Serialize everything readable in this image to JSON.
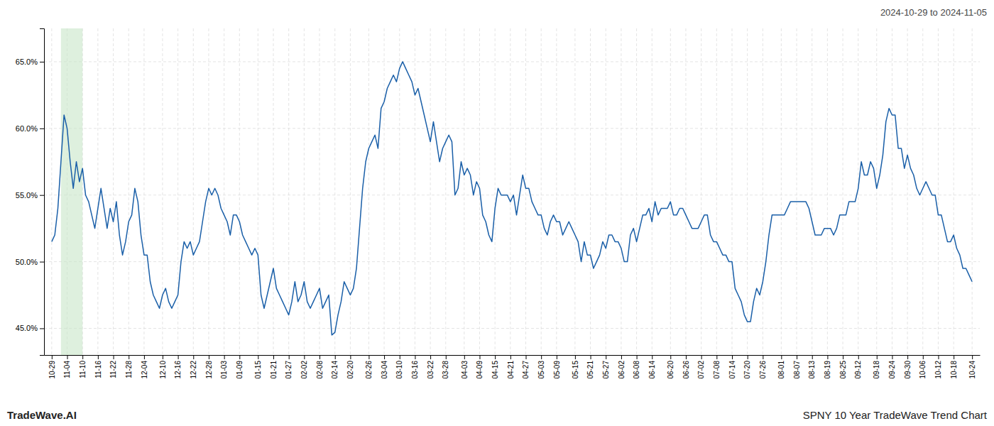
{
  "chart_data": {
    "type": "line",
    "title": "2024-10-29 to 2024-11-05",
    "annotations": [
      "TradeWave.AI",
      "SPNY 10 Year TradeWave Trend Chart"
    ],
    "color": "#1a5fa8",
    "highlight_band": {
      "start": 3,
      "end": 10,
      "color": "#c8e6c8"
    },
    "grid": true,
    "ylim": [
      43.0,
      67.5
    ],
    "yticks": [
      {
        "value": 45.0,
        "label": "45.0%"
      },
      {
        "value": 50.0,
        "label": "50.0%"
      },
      {
        "value": 55.0,
        "label": "55.0%"
      },
      {
        "value": 60.0,
        "label": "60.0%"
      },
      {
        "value": 65.0,
        "label": "65.0%"
      }
    ],
    "categories": [
      "10-29",
      null,
      null,
      null,
      null,
      "11-04",
      null,
      null,
      null,
      null,
      "11-10",
      null,
      null,
      null,
      null,
      "11-16",
      null,
      null,
      null,
      null,
      "11-22",
      null,
      null,
      null,
      null,
      "11-28",
      null,
      null,
      null,
      null,
      "12-04",
      null,
      null,
      null,
      null,
      null,
      "12-10",
      null,
      null,
      null,
      null,
      "12-16",
      null,
      null,
      null,
      null,
      "12-22",
      null,
      null,
      null,
      null,
      "12-28",
      null,
      null,
      null,
      null,
      "01-03",
      null,
      null,
      null,
      null,
      "01-09",
      null,
      null,
      null,
      null,
      null,
      "01-15",
      null,
      null,
      null,
      null,
      "01-21",
      null,
      null,
      null,
      null,
      "01-27",
      null,
      null,
      null,
      null,
      "02-02",
      null,
      null,
      null,
      null,
      "02-08",
      null,
      null,
      null,
      null,
      "02-14",
      null,
      null,
      null,
      null,
      "02-20",
      null,
      null,
      null,
      null,
      null,
      "02-26",
      null,
      null,
      null,
      null,
      "03-04",
      null,
      null,
      null,
      null,
      "03-10",
      null,
      null,
      null,
      null,
      "03-16",
      null,
      null,
      null,
      null,
      "03-22",
      null,
      null,
      null,
      null,
      "03-28",
      null,
      null,
      null,
      null,
      null,
      "04-03",
      null,
      null,
      null,
      null,
      "04-09",
      null,
      null,
      null,
      null,
      "04-15",
      null,
      null,
      null,
      null,
      "04-21",
      null,
      null,
      null,
      null,
      "04-27",
      null,
      null,
      null,
      null,
      "05-03",
      null,
      null,
      null,
      null,
      "05-09",
      null,
      null,
      null,
      null,
      null,
      "05-15",
      null,
      null,
      null,
      null,
      "05-21",
      null,
      null,
      null,
      null,
      "05-27",
      null,
      null,
      null,
      null,
      "06-02",
      null,
      null,
      null,
      null,
      "06-08",
      null,
      null,
      null,
      null,
      "06-14",
      null,
      null,
      null,
      null,
      null,
      "06-20",
      null,
      null,
      null,
      null,
      "06-26",
      null,
      null,
      null,
      null,
      "07-02",
      null,
      null,
      null,
      null,
      "07-08",
      null,
      null,
      null,
      null,
      "07-14",
      null,
      null,
      null,
      null,
      "07-20",
      null,
      null,
      null,
      null,
      "07-26",
      null,
      null,
      null,
      null,
      null,
      "08-01",
      null,
      null,
      null,
      null,
      "08-07",
      null,
      null,
      null,
      null,
      "08-13",
      null,
      null,
      null,
      null,
      "08-19",
      null,
      null,
      null,
      null,
      "08-25",
      null,
      null,
      null,
      null,
      "09-12",
      null,
      null,
      null,
      null,
      null,
      "09-18",
      null,
      null,
      null,
      null,
      "09-24",
      null,
      null,
      null,
      null,
      "09-30",
      null,
      null,
      null,
      null,
      "10-06",
      null,
      null,
      null,
      null,
      "10-12",
      null,
      null,
      null,
      null,
      "10-18",
      null,
      null,
      null,
      null,
      null,
      "10-24"
    ],
    "values": [
      51.5,
      52.0,
      54.0,
      57.5,
      61.0,
      60.0,
      57.5,
      55.5,
      57.5,
      56.0,
      57.0,
      55.0,
      54.5,
      53.5,
      52.5,
      54.0,
      55.5,
      54.0,
      52.5,
      54.0,
      53.0,
      54.5,
      52.0,
      50.5,
      51.5,
      53.0,
      53.5,
      55.5,
      54.5,
      52.0,
      50.5,
      50.5,
      48.5,
      47.5,
      47.0,
      46.5,
      47.5,
      48.0,
      47.0,
      46.5,
      47.0,
      47.5,
      50.0,
      51.5,
      51.0,
      51.5,
      50.5,
      51.0,
      51.5,
      53.0,
      54.5,
      55.5,
      55.0,
      55.5,
      55.0,
      54.0,
      53.5,
      53.0,
      52.0,
      53.5,
      53.5,
      53.0,
      52.0,
      51.5,
      51.0,
      50.5,
      51.0,
      50.5,
      47.5,
      46.5,
      47.5,
      48.5,
      49.5,
      48.0,
      47.5,
      47.0,
      46.5,
      46.0,
      47.0,
      48.5,
      47.0,
      47.5,
      48.5,
      47.0,
      46.5,
      47.0,
      47.5,
      48.0,
      46.5,
      47.0,
      47.5,
      44.5,
      44.7,
      46.0,
      47.0,
      48.5,
      48.0,
      47.5,
      48.0,
      49.5,
      52.5,
      55.5,
      57.5,
      58.5,
      59.0,
      59.5,
      58.5,
      61.5,
      62.0,
      63.0,
      63.5,
      64.0,
      63.5,
      64.5,
      65.0,
      64.5,
      64.0,
      63.5,
      62.5,
      63.0,
      62.0,
      61.0,
      60.0,
      59.0,
      60.5,
      59.0,
      57.5,
      58.5,
      59.0,
      59.5,
      59.0,
      55.0,
      55.5,
      57.5,
      56.5,
      57.0,
      56.5,
      55.0,
      56.0,
      55.5,
      53.5,
      53.0,
      52.0,
      51.5,
      54.0,
      55.5,
      55.0,
      55.0,
      55.0,
      54.5,
      55.0,
      53.5,
      55.0,
      56.5,
      55.5,
      55.5,
      54.5,
      54.0,
      53.5,
      53.5,
      52.5,
      52.0,
      53.0,
      53.5,
      53.0,
      53.0,
      52.0,
      52.5,
      53.0,
      52.5,
      52.0,
      51.5,
      50.0,
      51.5,
      50.5,
      50.5,
      49.5,
      50.0,
      50.5,
      51.5,
      51.0,
      52.0,
      52.0,
      51.5,
      51.5,
      51.0,
      50.0,
      50.0,
      52.0,
      52.5,
      51.5,
      52.5,
      53.5,
      53.5,
      54.0,
      53.0,
      54.5,
      53.5,
      54.0,
      54.0,
      54.0,
      54.5,
      53.5,
      53.5,
      54.0,
      54.0,
      53.5,
      53.0,
      52.5,
      52.5,
      52.5,
      53.0,
      53.5,
      53.5,
      52.0,
      51.5,
      51.5,
      51.0,
      50.5,
      50.5,
      50.0,
      50.0,
      48.0,
      47.5,
      47.0,
      46.0,
      45.5,
      45.5,
      47.0,
      48.0,
      47.5,
      48.5,
      50.0,
      52.0,
      53.5,
      53.5,
      53.5,
      53.5,
      53.5,
      54.0,
      54.5,
      54.5,
      54.5,
      54.5,
      54.5,
      54.5,
      54.0,
      53.0,
      52.0,
      52.0,
      52.0,
      52.5,
      52.5,
      52.5,
      52.0,
      52.5,
      53.5,
      53.5,
      53.5,
      54.5,
      54.5,
      54.5,
      55.5,
      57.5,
      56.5,
      56.5,
      57.5,
      57.0,
      55.5,
      56.5,
      58.0,
      60.5,
      61.5,
      61.0,
      61.0,
      58.5,
      58.5,
      57.0,
      58.0,
      57.0,
      56.5,
      55.5,
      55.0,
      55.5,
      56.0,
      55.5,
      55.0,
      55.0,
      53.5,
      53.5,
      52.5,
      51.5,
      51.5,
      52.0,
      51.0,
      50.5,
      49.5,
      49.5,
      49.0,
      48.5
    ]
  }
}
